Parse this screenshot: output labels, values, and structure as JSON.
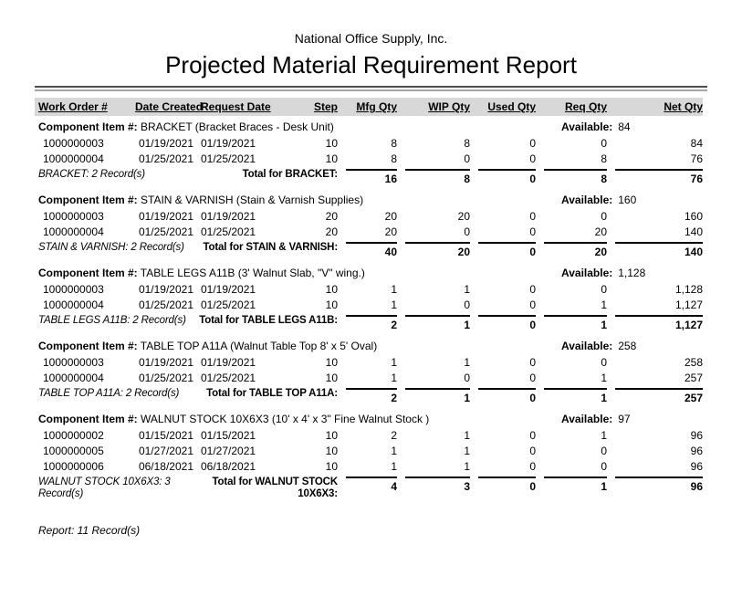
{
  "report": {
    "company_name": "National Office Supply, Inc.",
    "title": "Projected Material Requirement Report",
    "record_count": "Report: 11 Record(s)"
  },
  "table": {
    "component_label": "Component Item #:",
    "available_label": "Available:",
    "columns": [
      "Work Order #",
      "Date Created",
      "Request Date",
      "Step",
      "Mfg Qty",
      "WIP Qty",
      "Used Qty",
      "Req Qty",
      "Net Qty"
    ],
    "groups": [
      {
        "name": "BRACKET",
        "description": "(Bracket Braces - Desk Unit)",
        "available": "84",
        "rows": [
          [
            "1000000003",
            "01/19/2021",
            "01/19/2021",
            "10",
            "8",
            "8",
            "0",
            "0",
            "84"
          ],
          [
            "1000000004",
            "01/25/2021",
            "01/25/2021",
            "10",
            "8",
            "0",
            "0",
            "8",
            "76"
          ]
        ],
        "record_count": "BRACKET: 2 Record(s)",
        "total_label": "Total for BRACKET:",
        "totals": [
          "16",
          "8",
          "0",
          "8",
          "76"
        ]
      },
      {
        "name": "STAIN & VARNISH",
        "description": "(Stain & Varnish Supplies)",
        "available": "160",
        "rows": [
          [
            "1000000003",
            "01/19/2021",
            "01/19/2021",
            "20",
            "20",
            "20",
            "0",
            "0",
            "160"
          ],
          [
            "1000000004",
            "01/25/2021",
            "01/25/2021",
            "20",
            "20",
            "0",
            "0",
            "20",
            "140"
          ]
        ],
        "record_count": "STAIN & VARNISH: 2 Record(s)",
        "total_label": "Total for STAIN & VARNISH:",
        "totals": [
          "40",
          "20",
          "0",
          "20",
          "140"
        ]
      },
      {
        "name": "TABLE LEGS A11B",
        "description": "(3' Walnut Slab, \"V\" wing.)",
        "available": "1,128",
        "rows": [
          [
            "1000000003",
            "01/19/2021",
            "01/19/2021",
            "10",
            "1",
            "1",
            "0",
            "0",
            "1,128"
          ],
          [
            "1000000004",
            "01/25/2021",
            "01/25/2021",
            "10",
            "1",
            "0",
            "0",
            "1",
            "1,127"
          ]
        ],
        "record_count": "TABLE LEGS A11B: 2 Record(s)",
        "total_label": "Total for TABLE LEGS A11B:",
        "totals": [
          "2",
          "1",
          "0",
          "1",
          "1,127"
        ]
      },
      {
        "name": "TABLE TOP A11A",
        "description": "(Walnut Table Top 8' x 5' Oval)",
        "available": "258",
        "rows": [
          [
            "1000000003",
            "01/19/2021",
            "01/19/2021",
            "10",
            "1",
            "1",
            "0",
            "0",
            "258"
          ],
          [
            "1000000004",
            "01/25/2021",
            "01/25/2021",
            "10",
            "1",
            "0",
            "0",
            "1",
            "257"
          ]
        ],
        "record_count": "TABLE TOP A11A: 2 Record(s)",
        "total_label": "Total for TABLE TOP A11A:",
        "totals": [
          "2",
          "1",
          "0",
          "1",
          "257"
        ]
      },
      {
        "name": "WALNUT STOCK 10X6X3",
        "description": "(10' x 4' x 3\" Fine Walnut Stock )",
        "available": "97",
        "rows": [
          [
            "1000000002",
            "01/15/2021",
            "01/15/2021",
            "10",
            "2",
            "1",
            "0",
            "1",
            "96"
          ],
          [
            "1000000005",
            "01/27/2021",
            "01/27/2021",
            "10",
            "1",
            "1",
            "0",
            "0",
            "96"
          ],
          [
            "1000000006",
            "06/18/2021",
            "06/18/2021",
            "10",
            "1",
            "1",
            "0",
            "0",
            "96"
          ]
        ],
        "record_count": "WALNUT STOCK 10X6X3: 3 Record(s)",
        "total_label": "Total for WALNUT STOCK 10X6X3:",
        "totals": [
          "4",
          "3",
          "0",
          "1",
          "96"
        ]
      }
    ]
  },
  "colors": {
    "header_band": "#d8d8d8",
    "rule_dark": "#4d4d4d",
    "rule_light": "#a6a6a6",
    "total_rule": "#000000",
    "text": "#000000"
  }
}
